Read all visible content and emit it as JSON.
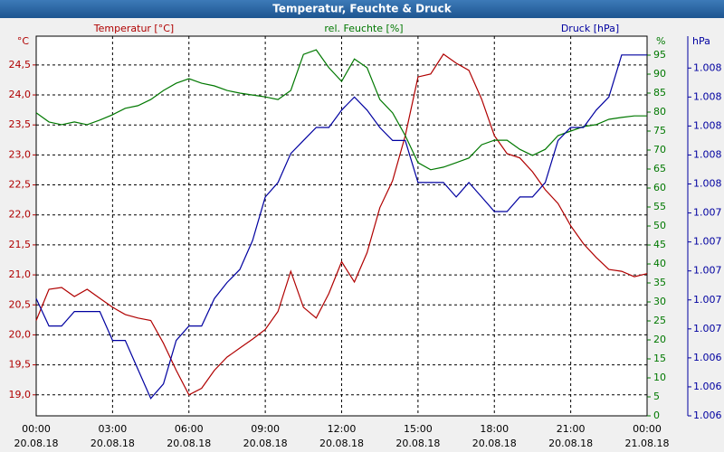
{
  "chart_data": {
    "type": "line",
    "title": "Temperatur, Feuchte & Druck",
    "y_unit": "°C",
    "y2_unit": "%",
    "y3_unit": "hPa",
    "x": [
      0,
      0.5,
      1,
      1.5,
      2,
      2.5,
      3,
      3.5,
      4,
      4.5,
      5,
      5.5,
      6,
      6.5,
      7,
      7.5,
      8,
      8.5,
      9,
      9.5,
      10,
      10.5,
      11,
      11.5,
      12,
      12.5,
      13,
      13.5,
      14,
      14.5,
      15,
      15.5,
      16,
      16.5,
      17,
      17.5,
      18,
      18.5,
      19,
      19.5,
      20,
      20.5,
      21,
      21.5,
      22,
      22.5,
      23,
      23.5,
      24
    ],
    "xlim": [
      0,
      24
    ],
    "xticks": [
      {
        "value": 0,
        "label": "00:00"
      },
      {
        "value": 3,
        "label": "03:00"
      },
      {
        "value": 6,
        "label": "06:00"
      },
      {
        "value": 9,
        "label": "09:00"
      },
      {
        "value": 12,
        "label": "12:00"
      },
      {
        "value": 15,
        "label": "15:00"
      },
      {
        "value": 18,
        "label": "18:00"
      },
      {
        "value": 21,
        "label": "21:00"
      },
      {
        "value": 24,
        "label": "00:00"
      }
    ],
    "xtick_dates": [
      "20.08.18",
      "20.08.18",
      "20.08.18",
      "20.08.18",
      "20.08.18",
      "20.08.18",
      "20.08.18",
      "20.08.18",
      "21.08.18"
    ],
    "ylim": [
      18.65,
      24.98
    ],
    "yticks": [
      {
        "value": 19,
        "label": "19,0"
      },
      {
        "value": 19.5,
        "label": "19,5"
      },
      {
        "value": 20,
        "label": "20,0"
      },
      {
        "value": 20.5,
        "label": "20,5"
      },
      {
        "value": 21,
        "label": "21,0"
      },
      {
        "value": 21.5,
        "label": "21,5"
      },
      {
        "value": 22,
        "label": "22,0"
      },
      {
        "value": 22.5,
        "label": "22,5"
      },
      {
        "value": 23,
        "label": "23,0"
      },
      {
        "value": 23.5,
        "label": "23,5"
      },
      {
        "value": 24,
        "label": "24,0"
      },
      {
        "value": 24.5,
        "label": "24,5"
      }
    ],
    "y2lim": [
      0,
      100
    ],
    "y2ticks": [
      0,
      5,
      10,
      15,
      20,
      25,
      30,
      35,
      40,
      45,
      50,
      55,
      60,
      65,
      70,
      75,
      80,
      85,
      90,
      95
    ],
    "y3lim": [
      1.006,
      1.00862
    ],
    "y3ticks": [
      {
        "value": 1.006,
        "label": "1.006"
      },
      {
        "value": 1.0062,
        "label": "1.006"
      },
      {
        "value": 1.0064,
        "label": "1.006"
      },
      {
        "value": 1.0066,
        "label": "1.007"
      },
      {
        "value": 1.0068,
        "label": "1.007"
      },
      {
        "value": 1.007,
        "label": "1.007"
      },
      {
        "value": 1.0072,
        "label": "1.007"
      },
      {
        "value": 1.0074,
        "label": "1.007"
      },
      {
        "value": 1.0076,
        "label": "1.008"
      },
      {
        "value": 1.0078,
        "label": "1.008"
      },
      {
        "value": 1.008,
        "label": "1.008"
      },
      {
        "value": 1.0082,
        "label": "1.008"
      },
      {
        "value": 1.0084,
        "label": "1.008"
      }
    ],
    "grid": true,
    "series": [
      {
        "name": "Temperatur [°C]",
        "color": "#b00000",
        "axis": "y",
        "values": [
          20.24,
          20.76,
          20.79,
          20.64,
          20.76,
          20.61,
          20.46,
          20.34,
          20.28,
          20.24,
          19.86,
          19.41,
          19.0,
          19.11,
          19.41,
          19.63,
          19.78,
          19.93,
          20.09,
          20.39,
          21.06,
          20.46,
          20.28,
          20.69,
          21.22,
          20.88,
          21.37,
          22.12,
          22.57,
          23.32,
          24.3,
          24.35,
          24.68,
          24.53,
          24.41,
          23.93,
          23.32,
          23.02,
          22.95,
          22.72,
          22.42,
          22.19,
          21.82,
          21.52,
          21.29,
          21.09,
          21.06,
          20.97,
          21.02
        ]
      },
      {
        "name": "rel. Feuchte [%]",
        "color": "#007800",
        "axis": "y2",
        "values": [
          79.8,
          77.4,
          76.7,
          77.4,
          76.7,
          77.9,
          79.3,
          81.0,
          81.7,
          83.3,
          85.7,
          87.6,
          88.8,
          87.6,
          86.9,
          85.7,
          85.0,
          84.5,
          84.0,
          83.3,
          85.7,
          95.2,
          96.4,
          91.7,
          88.1,
          94.0,
          91.7,
          83.3,
          79.8,
          73.8,
          66.7,
          64.8,
          65.5,
          66.7,
          67.9,
          71.4,
          72.6,
          72.6,
          70.2,
          68.6,
          70.2,
          73.8,
          75.0,
          76.2,
          76.7,
          78.1,
          78.6,
          79.0,
          79.0
        ]
      },
      {
        "name": "Druck [hPa]",
        "color": "#0000a0",
        "axis": "y3",
        "values": [
          1.00681,
          1.00662,
          1.00662,
          1.00672,
          1.00672,
          1.00672,
          1.00652,
          1.00652,
          1.00632,
          1.00612,
          1.00622,
          1.00652,
          1.00662,
          1.00662,
          1.00681,
          1.00692,
          1.00701,
          1.00721,
          1.00751,
          1.00761,
          1.00781,
          1.0079,
          1.00799,
          1.00799,
          1.00811,
          1.0082,
          1.00811,
          1.00799,
          1.0079,
          1.0079,
          1.00761,
          1.00761,
          1.00761,
          1.00751,
          1.00761,
          1.00751,
          1.00741,
          1.00741,
          1.00751,
          1.00751,
          1.00761,
          1.0079,
          1.00799,
          1.00799,
          1.00811,
          1.0082,
          1.00849,
          1.00849,
          1.00849
        ]
      }
    ]
  }
}
